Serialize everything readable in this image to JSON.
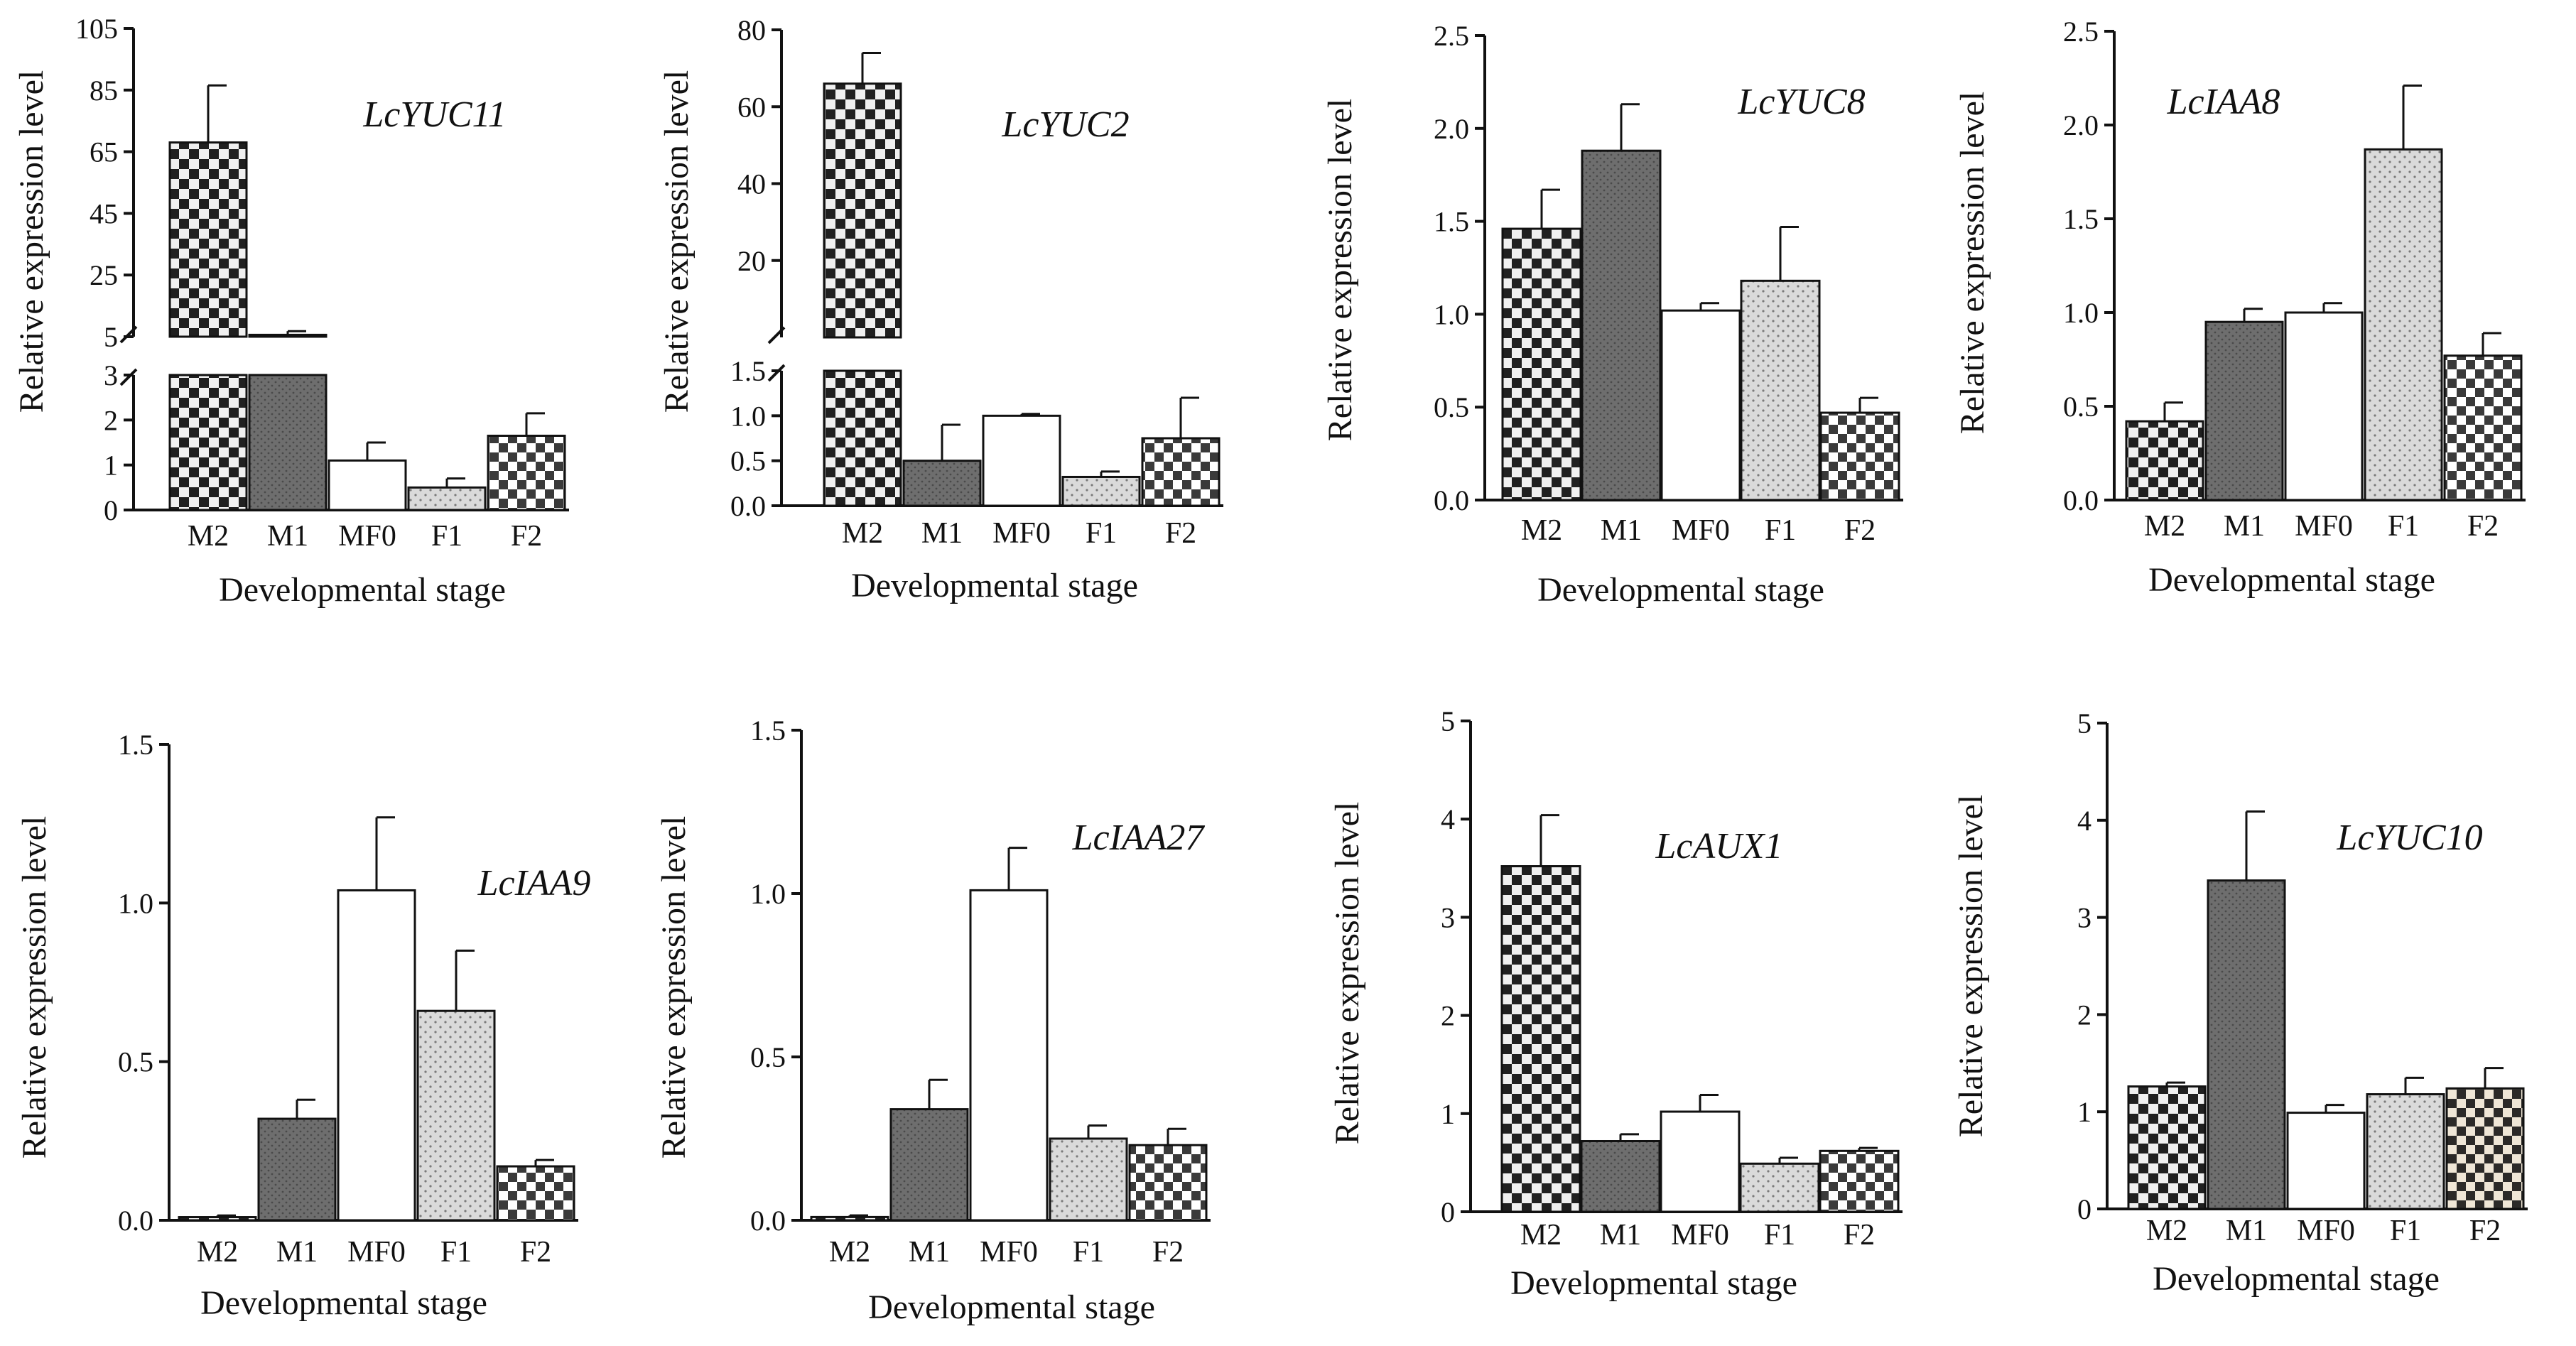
{
  "figure": {
    "stages": [
      "M2",
      "M1",
      "MF0",
      "F1",
      "F2"
    ],
    "xlabel": "Developmental stage",
    "ylabel": "Relative expression level"
  },
  "chart_data": [
    {
      "type": "bar",
      "title": "LcYUC11",
      "axis_break": true,
      "categories": [
        "M2",
        "M1",
        "MF0",
        "F1",
        "F2"
      ],
      "values": [
        68,
        5.6,
        1.1,
        0.5,
        1.65
      ],
      "errors": [
        18.5,
        1.2,
        0.4,
        0.2,
        0.5
      ],
      "lower_range": [
        0,
        3
      ],
      "lower_ticks": [
        0,
        1,
        2,
        3
      ],
      "upper_range": [
        5,
        105
      ],
      "upper_ticks": [
        5,
        25,
        45,
        65,
        85,
        105
      ],
      "fills": [
        "checker-dark",
        "dots-dark",
        "white",
        "dots-light",
        "checker-light"
      ]
    },
    {
      "type": "bar",
      "title": "LcYUC2",
      "axis_break": true,
      "categories": [
        "M2",
        "M1",
        "MF0",
        "F1",
        "F2"
      ],
      "values": [
        66,
        0.5,
        1.0,
        0.32,
        0.75
      ],
      "errors": [
        8,
        0.4,
        0.02,
        0.06,
        0.45
      ],
      "lower_range": [
        0,
        1.5
      ],
      "lower_ticks": [
        "0.0",
        "0.5",
        "1.0",
        "1.5"
      ],
      "upper_range": [
        0,
        80
      ],
      "upper_ticks": [
        20,
        40,
        60,
        80
      ],
      "fills": [
        "checker-dark",
        "dots-dark",
        "white",
        "dots-light",
        "checker-light"
      ]
    },
    {
      "type": "bar",
      "title": "LcYUC8",
      "categories": [
        "M2",
        "M1",
        "MF0",
        "F1",
        "F2"
      ],
      "values": [
        1.46,
        1.88,
        1.02,
        1.18,
        0.47
      ],
      "errors": [
        0.21,
        0.25,
        0.04,
        0.29,
        0.08
      ],
      "ylim": [
        0,
        2.5
      ],
      "yticks": [
        "0.0",
        "0.5",
        "1.0",
        "1.5",
        "2.0",
        "2.5"
      ],
      "fills": [
        "checker-dark",
        "dots-dark",
        "white",
        "dots-light",
        "checker-light"
      ]
    },
    {
      "type": "bar",
      "title": "LcIAA8",
      "categories": [
        "M2",
        "M1",
        "MF0",
        "F1",
        "F2"
      ],
      "values": [
        0.42,
        0.95,
        1.0,
        1.87,
        0.77
      ],
      "errors": [
        0.1,
        0.07,
        0.05,
        0.34,
        0.12
      ],
      "ylim": [
        0,
        2.5
      ],
      "yticks": [
        "0.0",
        "0.5",
        "1.0",
        "1.5",
        "2.0",
        "2.5"
      ],
      "fills": [
        "checker-dark",
        "dots-dark",
        "white",
        "dots-light",
        "checker-light"
      ]
    },
    {
      "type": "bar",
      "title": "LcIAA9",
      "categories": [
        "M2",
        "M1",
        "MF0",
        "F1",
        "F2"
      ],
      "values": [
        0.01,
        0.32,
        1.04,
        0.66,
        0.17
      ],
      "errors": [
        0.005,
        0.06,
        0.23,
        0.19,
        0.02
      ],
      "ylim": [
        0,
        1.5
      ],
      "yticks": [
        "0.0",
        "0.5",
        "1.0",
        "1.5"
      ],
      "fills": [
        "checker-dark",
        "dots-dark",
        "white",
        "dots-light",
        "checker-light"
      ]
    },
    {
      "type": "bar",
      "title": "LcIAA27",
      "categories": [
        "M2",
        "M1",
        "MF0",
        "F1",
        "F2"
      ],
      "values": [
        0.01,
        0.34,
        1.01,
        0.25,
        0.23
      ],
      "errors": [
        0.005,
        0.09,
        0.13,
        0.04,
        0.05
      ],
      "ylim": [
        0,
        1.5
      ],
      "yticks": [
        "0.0",
        "0.5",
        "1.0",
        "1.5"
      ],
      "fills": [
        "checker-dark",
        "dots-dark",
        "white",
        "dots-light",
        "checker-light"
      ]
    },
    {
      "type": "bar",
      "title": "LcAUX1",
      "categories": [
        "M2",
        "M1",
        "MF0",
        "F1",
        "F2"
      ],
      "values": [
        3.52,
        0.72,
        1.02,
        0.49,
        0.62
      ],
      "errors": [
        0.52,
        0.07,
        0.17,
        0.06,
        0.03
      ],
      "ylim": [
        0,
        5
      ],
      "yticks": [
        "0",
        "1",
        "2",
        "3",
        "4",
        "5"
      ],
      "fills": [
        "checker-dark",
        "dots-dark",
        "white",
        "dots-light",
        "checker-light"
      ]
    },
    {
      "type": "bar",
      "title": "LcYUC10",
      "categories": [
        "M2",
        "M1",
        "MF0",
        "F1",
        "F2"
      ],
      "values": [
        1.26,
        3.38,
        0.99,
        1.18,
        1.24
      ],
      "errors": [
        0.04,
        0.71,
        0.08,
        0.17,
        0.21
      ],
      "ylim": [
        0,
        5
      ],
      "yticks": [
        "0",
        "1",
        "2",
        "3",
        "4",
        "5"
      ],
      "fills": [
        "checker-dark",
        "dots-dark",
        "white",
        "dots-light",
        "checker-beige"
      ]
    }
  ]
}
